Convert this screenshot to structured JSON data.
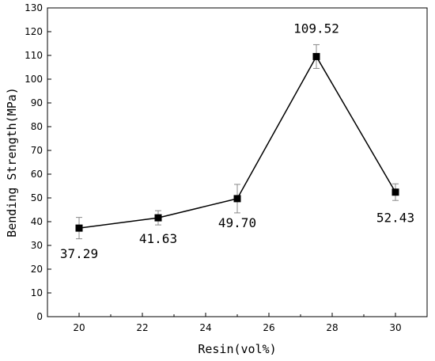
{
  "chart_data": {
    "type": "line",
    "title": "",
    "xlabel": "Resin(vol%)",
    "ylabel": "Bending Strength(MPa)",
    "xlim": [
      19,
      31
    ],
    "ylim": [
      0,
      130
    ],
    "xticks": [
      20,
      22,
      24,
      26,
      28,
      30
    ],
    "yticks": [
      0,
      10,
      20,
      30,
      40,
      50,
      60,
      70,
      80,
      90,
      100,
      110,
      120,
      130
    ],
    "grid": false,
    "legend": "none",
    "marker": "square",
    "line_color": "#000000",
    "errorbar_color": "#888888",
    "series": [
      {
        "x": [
          20,
          22.5,
          25,
          27.5,
          30
        ],
        "y": [
          37.29,
          41.63,
          49.7,
          109.52,
          52.43
        ],
        "error": [
          4.5,
          3.0,
          6.0,
          5.0,
          3.5
        ],
        "labels": [
          "37.29",
          "41.63",
          "49.70",
          "109.52",
          "52.43"
        ]
      }
    ]
  }
}
